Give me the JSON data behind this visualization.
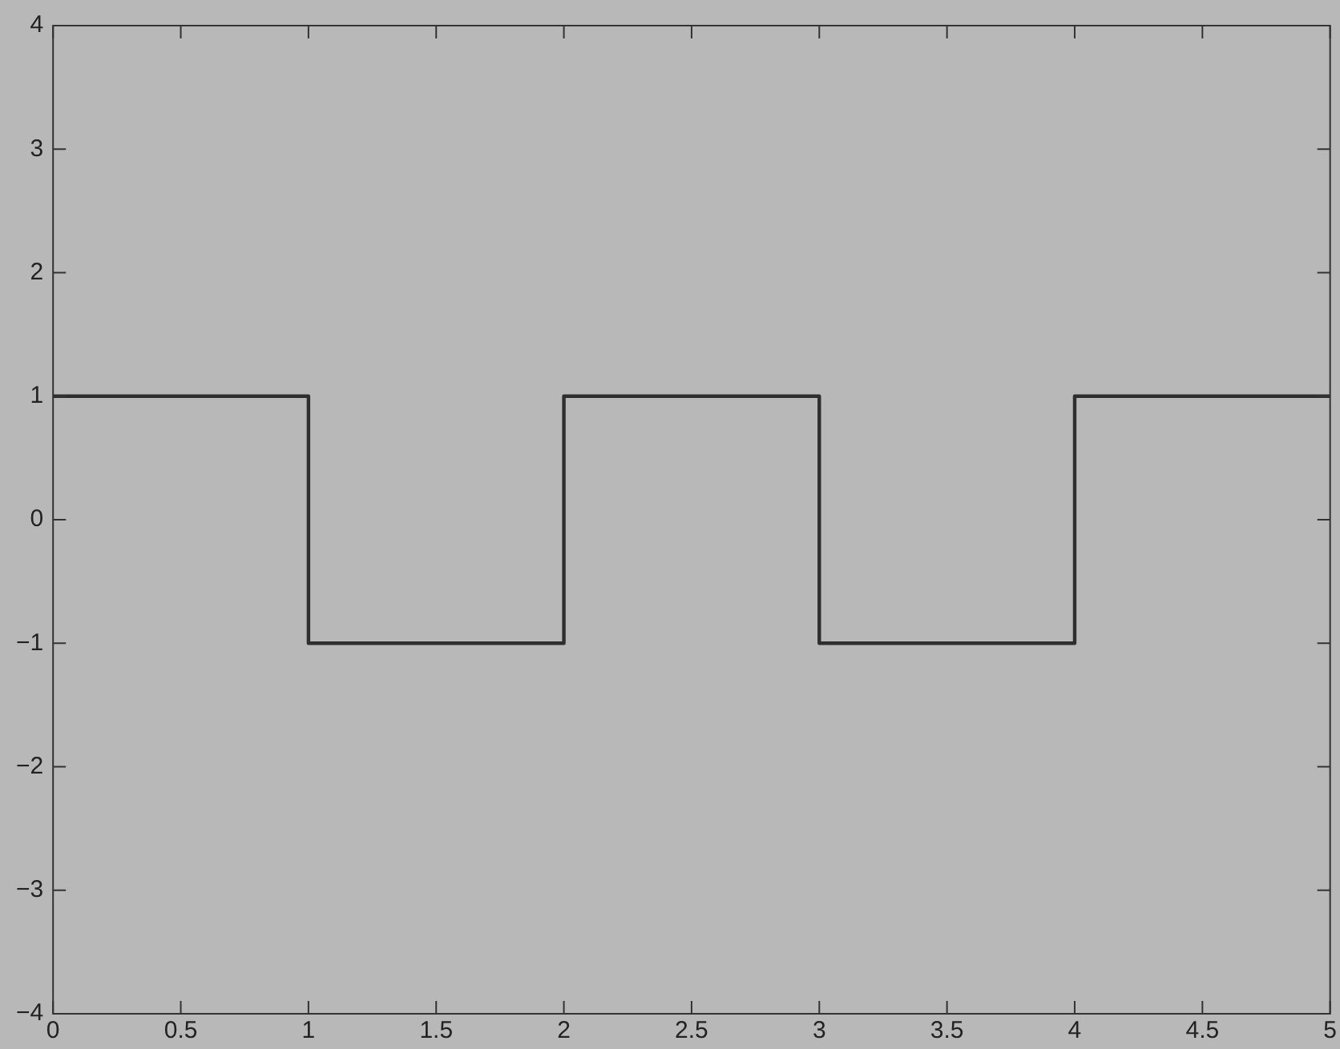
{
  "chart_data": {
    "type": "step",
    "x": [
      0,
      1,
      2,
      3,
      4,
      5
    ],
    "series": [
      {
        "color": "#2e2e2e",
        "values": [
          1,
          -1,
          1,
          -1,
          1,
          1
        ]
      }
    ],
    "xlim": [
      0,
      5
    ],
    "xticks": [
      0,
      0.5,
      1,
      1.5,
      2,
      2.5,
      3,
      3.5,
      4,
      4.5,
      5
    ],
    "ylim": [
      -4,
      4
    ],
    "yticks": [
      {
        "value": -4,
        "label": "−4"
      },
      {
        "value": -3,
        "label": "−3"
      },
      {
        "value": -2,
        "label": "−2"
      },
      {
        "value": -1,
        "label": "−1"
      },
      0,
      1,
      2,
      3,
      4
    ],
    "grid": false,
    "legend": false,
    "line_style": "solid",
    "marker": "none"
  }
}
